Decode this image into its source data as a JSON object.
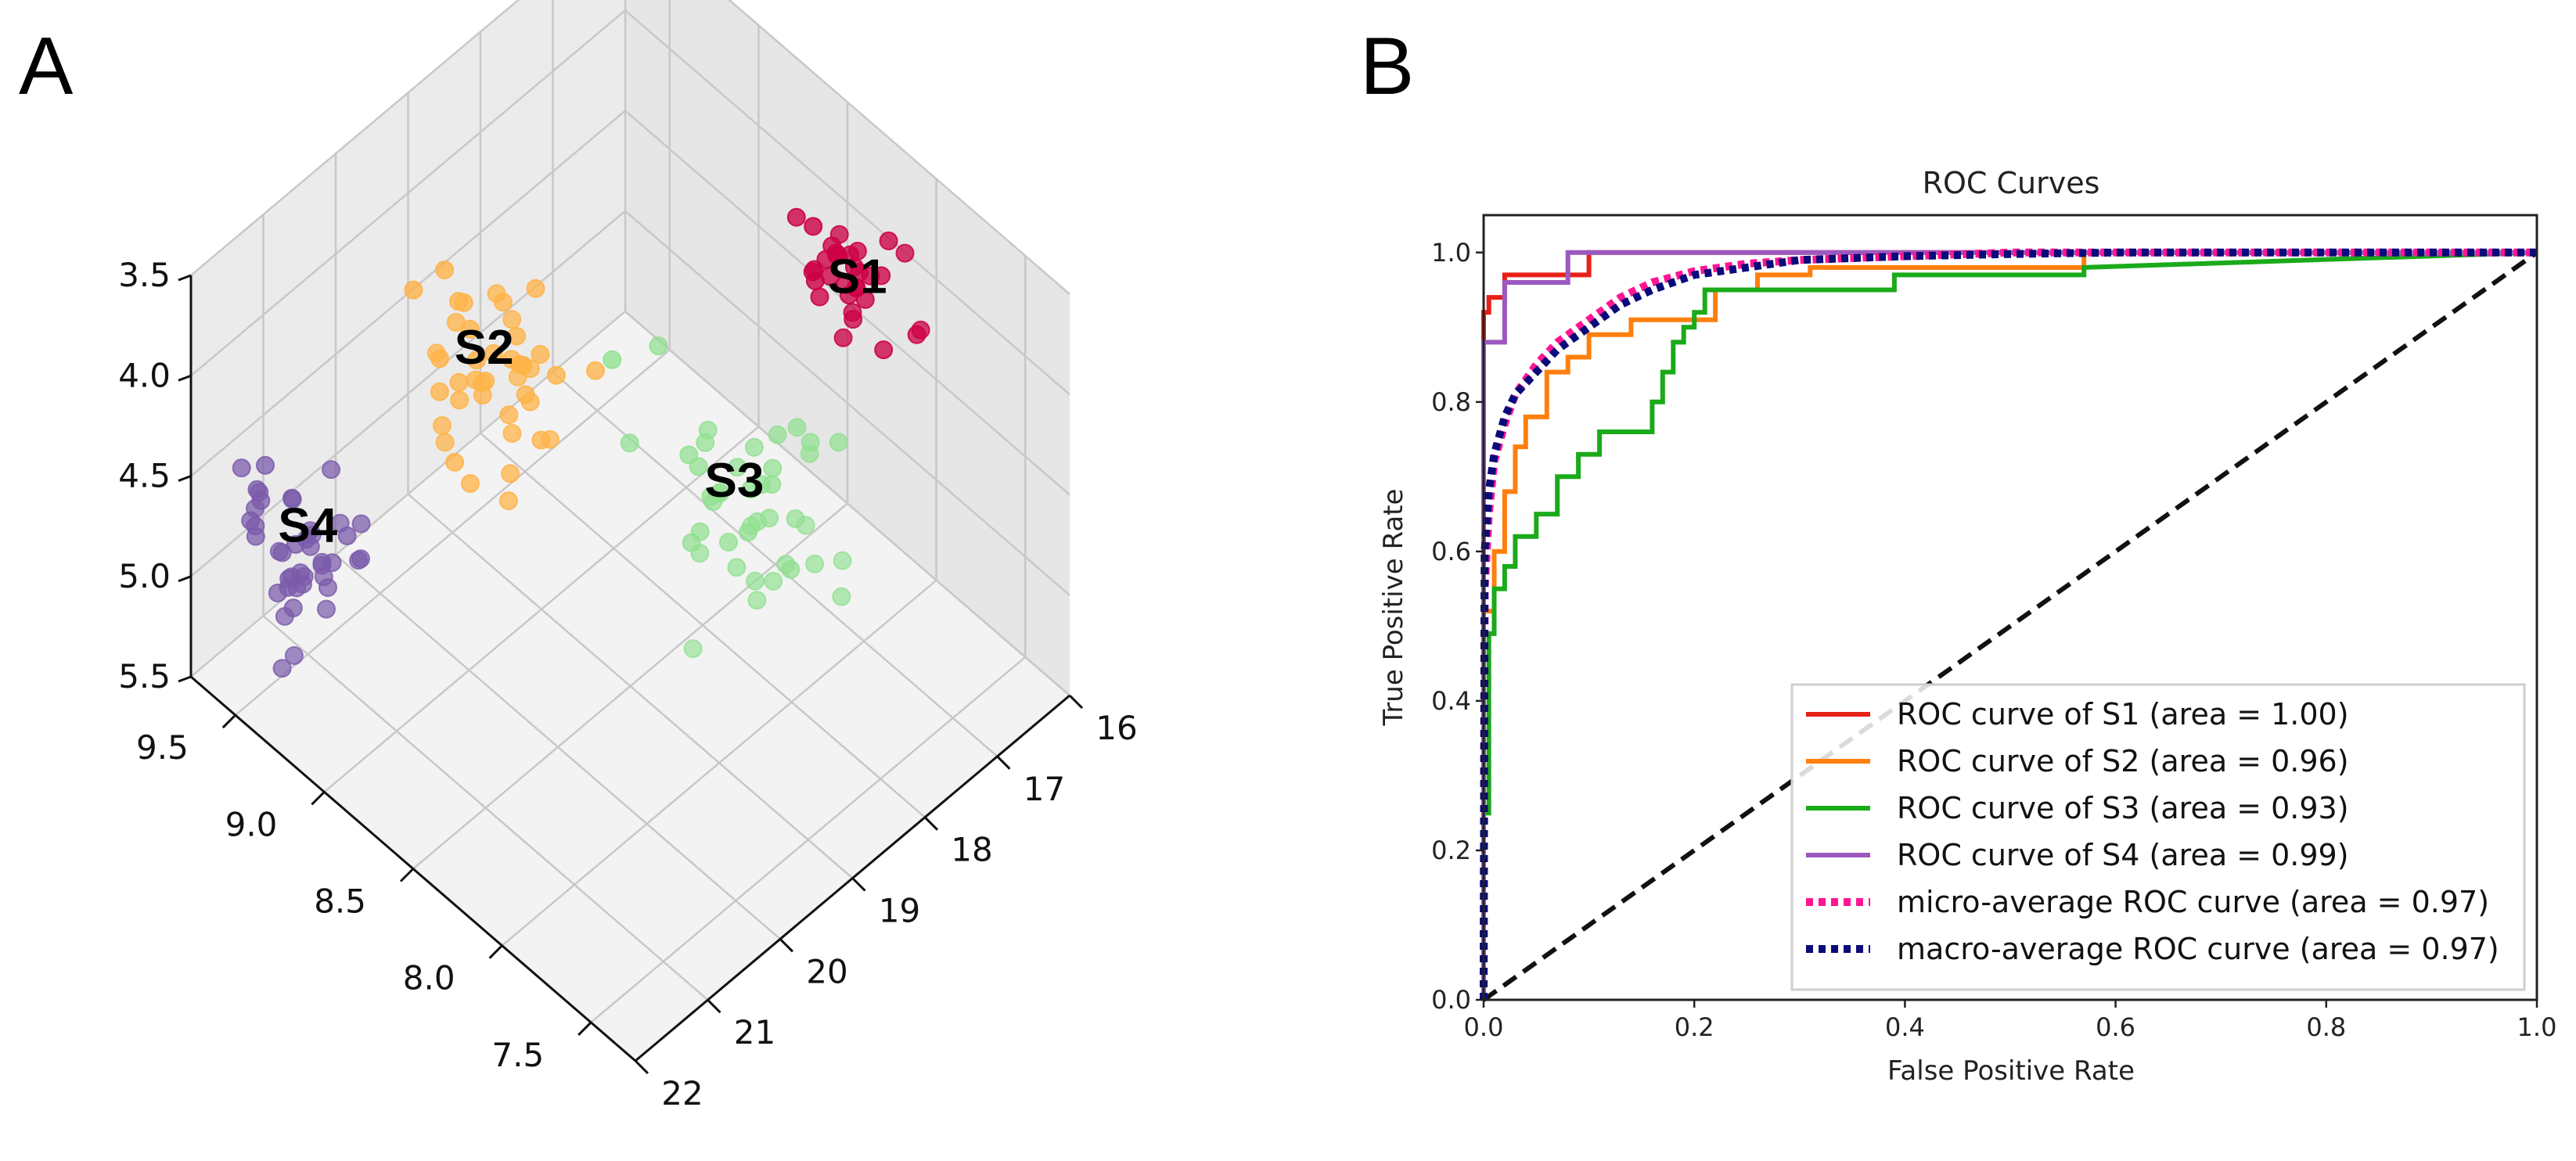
{
  "panels": {
    "a": {
      "letter": "A"
    },
    "b": {
      "letter": "B"
    }
  },
  "chart_data": [
    {
      "type": "scatter",
      "projection": "3d",
      "title": "",
      "x_ticks": [
        "16",
        "17",
        "18",
        "19",
        "20",
        "21",
        "22"
      ],
      "y_ticks": [
        "9.5",
        "9.0",
        "8.5",
        "8.0",
        "7.5"
      ],
      "z_ticks": [
        "3.5",
        "4.0",
        "4.5",
        "5.0",
        "5.5"
      ],
      "xlim": [
        16,
        22
      ],
      "ylim": [
        7.25,
        9.75
      ],
      "zlim": [
        3.5,
        5.5
      ],
      "clusters": [
        {
          "label": "S1",
          "color": "#cc0044",
          "center": [
            16.6,
            8.2,
            4.0
          ]
        },
        {
          "label": "S2",
          "color": "#ffb347",
          "center": [
            19.3,
            9.2,
            4.3
          ]
        },
        {
          "label": "S3",
          "color": "#90e090",
          "center": [
            18.3,
            8.2,
            4.5
          ]
        },
        {
          "label": "S4",
          "color": "#7a5aaa",
          "center": [
            21.0,
            9.5,
            4.9
          ]
        }
      ]
    },
    {
      "type": "line",
      "title": "ROC Curves",
      "xlabel": "False Positive Rate",
      "ylabel": "True Positive Rate",
      "xlim": [
        0.0,
        1.0
      ],
      "ylim": [
        0.0,
        1.05
      ],
      "x_ticks": [
        "0.0",
        "0.2",
        "0.4",
        "0.6",
        "0.8",
        "1.0"
      ],
      "y_ticks": [
        "0.0",
        "0.2",
        "0.4",
        "0.6",
        "0.8",
        "1.0"
      ],
      "legend_position": "lower-right",
      "series": [
        {
          "name": "ROC curve of S1 (area = 1.00)",
          "color": "#e8201a",
          "style": "solid",
          "x": [
            0,
            0,
            0.005,
            0.005,
            0.02,
            0.02,
            0.1,
            0.1,
            1.0
          ],
          "y": [
            0,
            0.92,
            0.92,
            0.94,
            0.94,
            0.97,
            0.97,
            1.0,
            1.0
          ]
        },
        {
          "name": "ROC curve of S2 (area = 0.96)",
          "color": "#ff7f0e",
          "style": "solid",
          "x": [
            0,
            0,
            0.01,
            0.01,
            0.02,
            0.02,
            0.03,
            0.03,
            0.04,
            0.04,
            0.06,
            0.06,
            0.08,
            0.08,
            0.1,
            0.1,
            0.14,
            0.14,
            0.22,
            0.22,
            0.26,
            0.26,
            0.31,
            0.31,
            0.57,
            0.57,
            1.0
          ],
          "y": [
            0,
            0.52,
            0.52,
            0.6,
            0.6,
            0.68,
            0.68,
            0.74,
            0.74,
            0.78,
            0.78,
            0.84,
            0.84,
            0.86,
            0.86,
            0.89,
            0.89,
            0.91,
            0.91,
            0.95,
            0.95,
            0.97,
            0.97,
            0.98,
            0.98,
            1.0,
            1.0
          ]
        },
        {
          "name": "ROC curve of S3 (area = 0.93)",
          "color": "#1aaa1a",
          "style": "solid",
          "x": [
            0,
            0,
            0.005,
            0.005,
            0.01,
            0.01,
            0.02,
            0.02,
            0.03,
            0.03,
            0.05,
            0.05,
            0.07,
            0.07,
            0.09,
            0.09,
            0.11,
            0.11,
            0.16,
            0.16,
            0.17,
            0.17,
            0.18,
            0.18,
            0.19,
            0.19,
            0.2,
            0.2,
            0.21,
            0.21,
            0.39,
            0.39,
            0.57,
            0.57,
            1.0
          ],
          "y": [
            0,
            0.25,
            0.25,
            0.49,
            0.49,
            0.55,
            0.55,
            0.58,
            0.58,
            0.62,
            0.62,
            0.65,
            0.65,
            0.7,
            0.7,
            0.73,
            0.73,
            0.76,
            0.76,
            0.8,
            0.8,
            0.84,
            0.84,
            0.88,
            0.88,
            0.9,
            0.9,
            0.92,
            0.92,
            0.95,
            0.95,
            0.97,
            0.97,
            0.98,
            1.0
          ]
        },
        {
          "name": "ROC curve of S4 (area = 0.99)",
          "color": "#9b59c0",
          "style": "solid",
          "x": [
            0,
            0,
            0.02,
            0.02,
            0.08,
            0.08,
            1.0
          ],
          "y": [
            0,
            0.88,
            0.88,
            0.96,
            0.96,
            1.0,
            1.0
          ]
        },
        {
          "name": "micro-average ROC curve (area = 0.97)",
          "color": "#ff1493",
          "style": "dotted",
          "x": [
            0,
            0.001,
            0.005,
            0.01,
            0.02,
            0.03,
            0.05,
            0.07,
            0.1,
            0.13,
            0.16,
            0.2,
            0.25,
            0.3,
            0.4,
            0.5,
            0.6,
            0.8,
            1.0
          ],
          "y": [
            0,
            0.55,
            0.65,
            0.72,
            0.77,
            0.81,
            0.85,
            0.88,
            0.91,
            0.94,
            0.96,
            0.975,
            0.985,
            0.99,
            0.995,
            1.0,
            1.0,
            1.0,
            1.0
          ]
        },
        {
          "name": "macro-average ROC curve (area = 0.97)",
          "color": "#0a0a7a",
          "style": "dotted",
          "x": [
            0,
            0.001,
            0.005,
            0.01,
            0.02,
            0.03,
            0.05,
            0.07,
            0.1,
            0.13,
            0.16,
            0.2,
            0.25,
            0.3,
            0.4,
            0.5,
            0.6,
            0.8,
            1.0
          ],
          "y": [
            0,
            0.6,
            0.68,
            0.73,
            0.78,
            0.81,
            0.84,
            0.87,
            0.9,
            0.93,
            0.95,
            0.97,
            0.98,
            0.99,
            0.995,
            0.998,
            1.0,
            1.0,
            1.0
          ]
        },
        {
          "name": "",
          "color": "#111111",
          "style": "dashed",
          "x": [
            0,
            1.0
          ],
          "y": [
            0,
            1.0
          ]
        }
      ]
    }
  ]
}
